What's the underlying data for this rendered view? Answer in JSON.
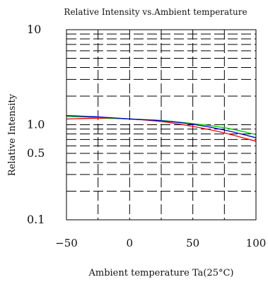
{
  "chart_data": {
    "type": "line",
    "title": "Relative Intensity vs.Ambient temperature",
    "xlabel": "Ambient temperature Ta(25°C)",
    "ylabel": "Relative Intensity",
    "xlim": [
      -50,
      100
    ],
    "ylim": [
      0.1,
      10
    ],
    "yscale": "log",
    "grid": true,
    "x_ticks": [
      {
        "value": -50,
        "label": "−50"
      },
      {
        "value": 0,
        "label": "0"
      },
      {
        "value": 50,
        "label": "50"
      },
      {
        "value": 100,
        "label": "100"
      }
    ],
    "y_ticks": [
      {
        "value": 10,
        "label": "10"
      },
      {
        "value": 1,
        "label": "1.0"
      },
      {
        "value": 0.5,
        "label": "0.5"
      },
      {
        "value": 0.1,
        "label": "0.1"
      }
    ],
    "series": [
      {
        "color": "#ff0000",
        "x": [
          -50,
          -25,
          0,
          25,
          50,
          75,
          100
        ],
        "y": [
          1.15,
          1.17,
          1.15,
          1.08,
          0.96,
          0.82,
          0.67
        ]
      },
      {
        "color": "#00cc00",
        "x": [
          -50,
          -25,
          0,
          25,
          50,
          75,
          100
        ],
        "y": [
          1.22,
          1.19,
          1.15,
          1.11,
          1.03,
          0.93,
          0.79
        ]
      },
      {
        "color": "#0000cc",
        "x": [
          -50,
          -25,
          0,
          25,
          50,
          75,
          100
        ],
        "y": [
          1.25,
          1.21,
          1.15,
          1.1,
          1.01,
          0.88,
          0.73
        ]
      }
    ]
  }
}
